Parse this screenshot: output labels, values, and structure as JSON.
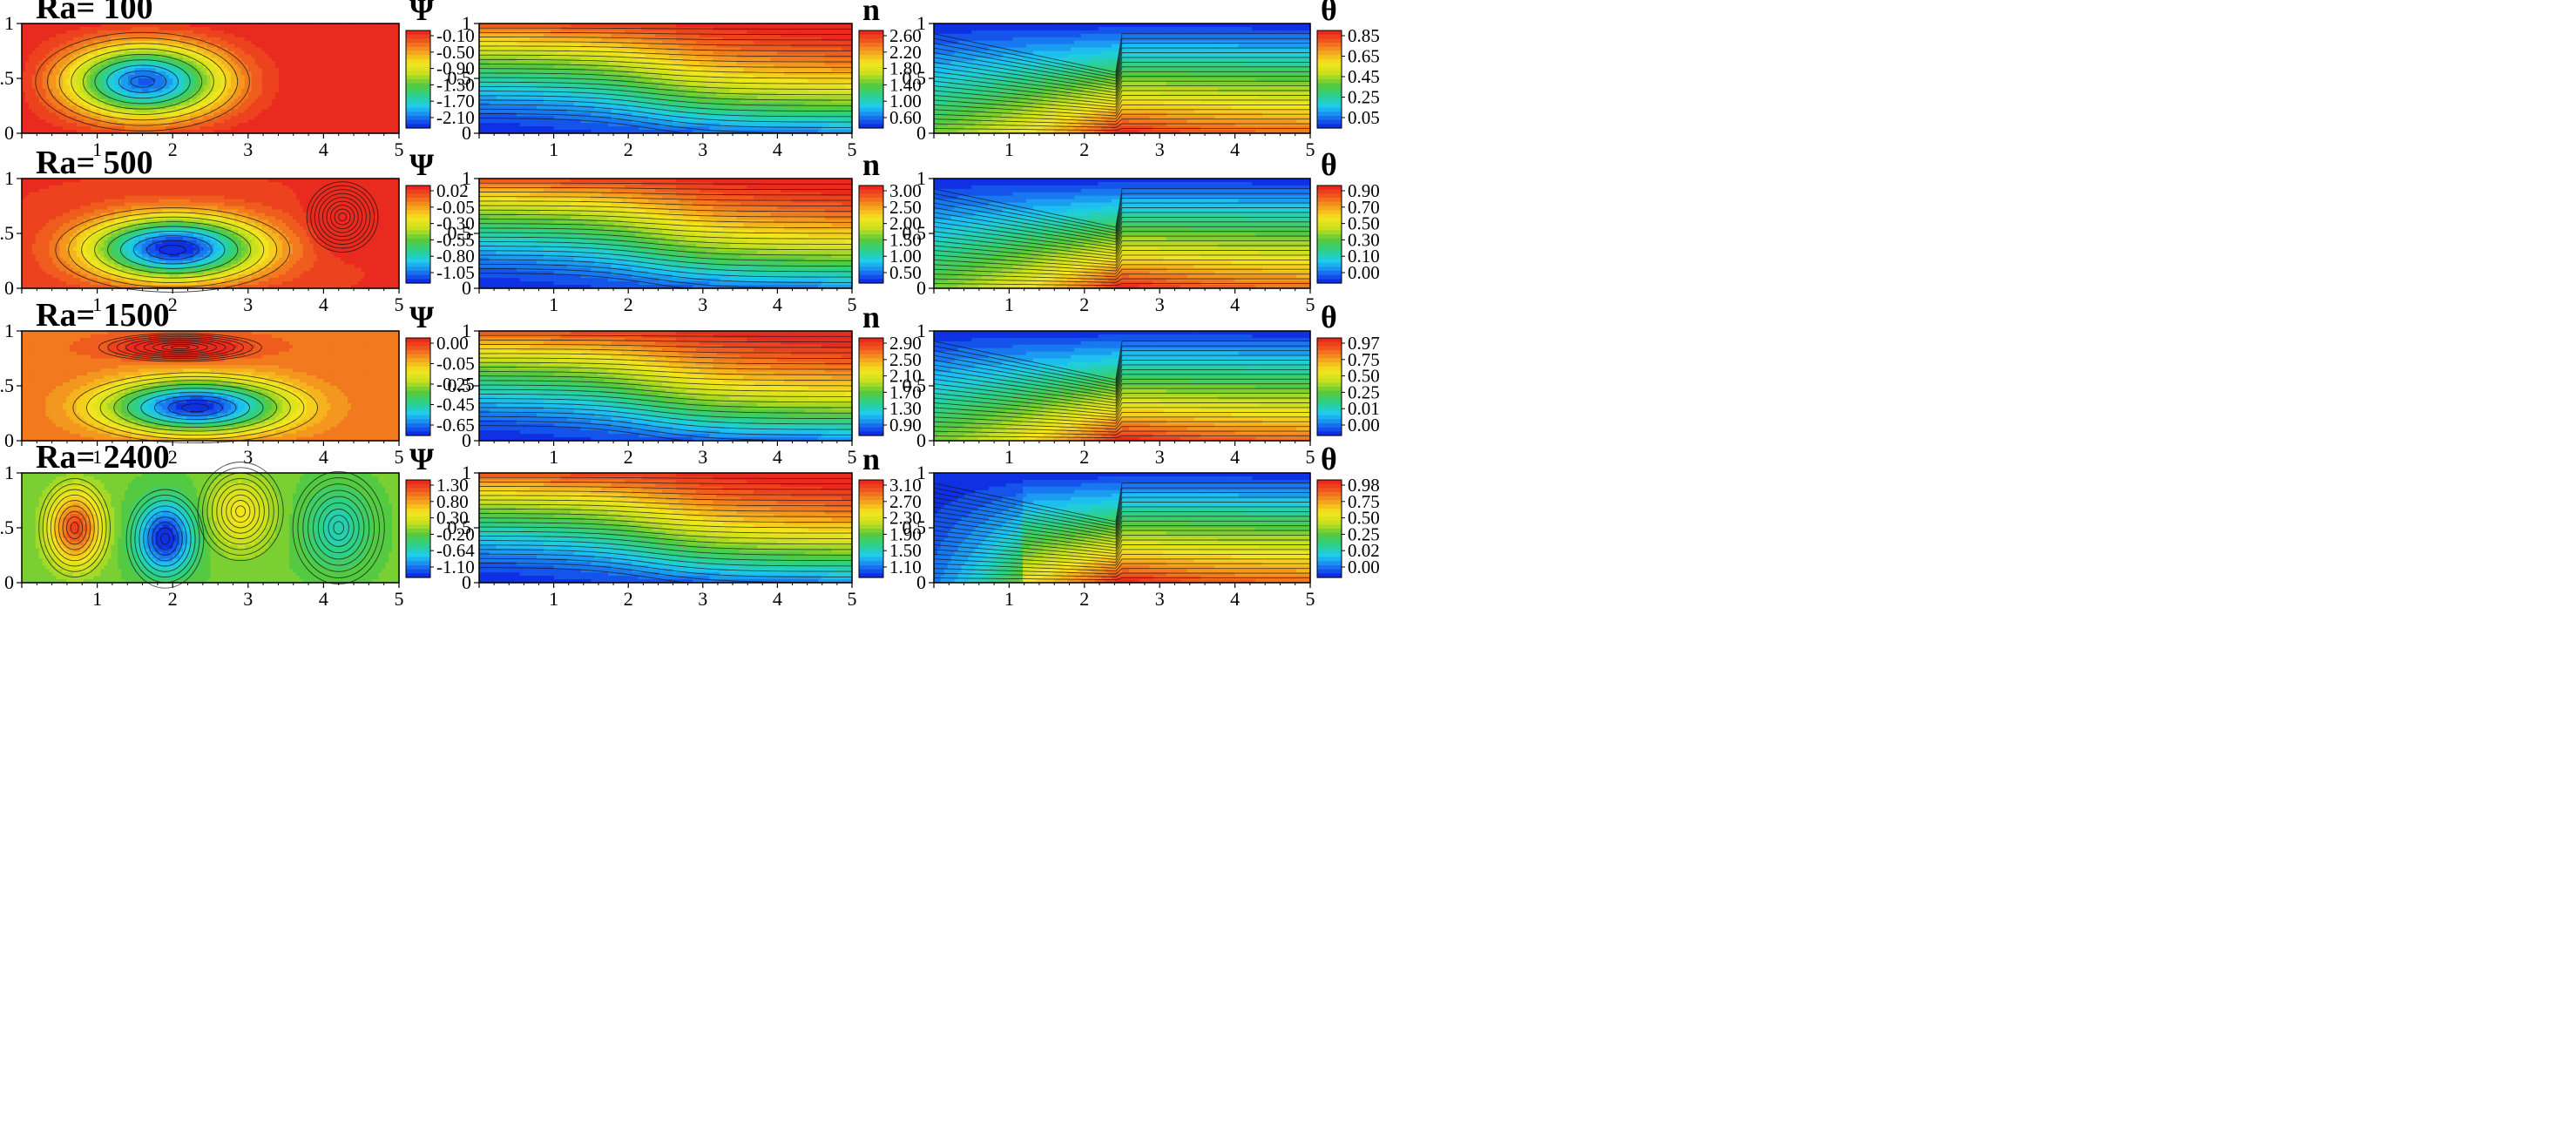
{
  "figure": {
    "description_rows": [
      "Ra= 100",
      "Ra= 500",
      "Ra= 1500",
      "Ra= 2400"
    ]
  },
  "colormap": [
    "#0c1ee0",
    "#1976f0",
    "#1ecdf0",
    "#2bd08a",
    "#59c93a",
    "#c7e01e",
    "#f5e51e",
    "#f5a21e",
    "#ef5a1e",
    "#e81e1e"
  ],
  "chart_data": [
    {
      "type": "heatmap",
      "row": 0,
      "col": 0,
      "title": "Ra= 100",
      "variable": "Ψ",
      "field": "psi_one_cell",
      "xlim": [
        0,
        5
      ],
      "ylim": [
        0,
        1
      ],
      "x_ticks": [
        "1",
        "2",
        "3",
        "4",
        "5"
      ],
      "y_ticks": [
        "0",
        "0.5",
        "1"
      ],
      "colorbar": {
        "labels": [
          "-0.10",
          "-0.50",
          "-0.90",
          "-1.30",
          "-1.70",
          "-2.10"
        ],
        "range": [
          -2.3,
          0.0
        ]
      },
      "cells": [
        {
          "cx": 1.6,
          "cy": 0.47,
          "amp": -2.2,
          "sx": 1.05,
          "sy": 0.35
        }
      ]
    },
    {
      "type": "heatmap",
      "row": 0,
      "col": 1,
      "variable": "n",
      "field": "conc",
      "xlim": [
        0,
        5
      ],
      "ylim": [
        0,
        1
      ],
      "x_ticks": [
        "1",
        "2",
        "3",
        "4",
        "5"
      ],
      "y_ticks": [
        "0",
        "0.5",
        "1"
      ],
      "colorbar": {
        "labels": [
          "2.60",
          "2.20",
          "1.80",
          "1.40",
          "1.00",
          "0.60"
        ],
        "range": [
          0.45,
          2.8
        ]
      }
    },
    {
      "type": "heatmap",
      "row": 0,
      "col": 2,
      "variable": "θ",
      "field": "temp",
      "xlim": [
        0,
        5
      ],
      "ylim": [
        0,
        1
      ],
      "x_ticks": [
        "1",
        "2",
        "3",
        "4",
        "5"
      ],
      "y_ticks": [
        "0",
        "0.5",
        "1"
      ],
      "colorbar": {
        "labels": [
          "0.85",
          "0.65",
          "0.45",
          "0.25",
          "0.05"
        ],
        "range": [
          0.0,
          1.0
        ]
      }
    },
    {
      "type": "heatmap",
      "row": 1,
      "col": 0,
      "title": "Ra= 500",
      "variable": "Ψ",
      "field": "psi_two_cell",
      "xlim": [
        0,
        5
      ],
      "ylim": [
        0,
        1
      ],
      "x_ticks": [
        "1",
        "2",
        "3",
        "4",
        "5"
      ],
      "y_ticks": [
        "0",
        "0.5",
        "1"
      ],
      "colorbar": {
        "labels": [
          "0.02",
          "-0.05",
          "-0.30",
          "-0.55",
          "-0.80",
          "-1.05"
        ],
        "range": [
          -1.1,
          0.05
        ]
      },
      "cells": [
        {
          "cx": 2.0,
          "cy": 0.35,
          "amp": -1.15,
          "sx": 1.15,
          "sy": 0.3
        },
        {
          "cx": 4.25,
          "cy": 0.65,
          "amp": 0.25,
          "sx": 0.35,
          "sy": 0.25
        }
      ]
    },
    {
      "type": "heatmap",
      "row": 1,
      "col": 1,
      "variable": "n",
      "field": "conc",
      "xlim": [
        0,
        5
      ],
      "ylim": [
        0,
        1
      ],
      "x_ticks": [
        "1",
        "2",
        "3",
        "4",
        "5"
      ],
      "y_ticks": [
        "0",
        "0.5",
        "1"
      ],
      "colorbar": {
        "labels": [
          "3.00",
          "2.50",
          "2.00",
          "1.50",
          "1.00",
          "0.50"
        ],
        "range": [
          0.3,
          3.3
        ]
      }
    },
    {
      "type": "heatmap",
      "row": 1,
      "col": 2,
      "variable": "θ",
      "field": "temp",
      "xlim": [
        0,
        5
      ],
      "ylim": [
        0,
        1
      ],
      "x_ticks": [
        "1",
        "2",
        "3",
        "4",
        "5"
      ],
      "y_ticks": [
        "0",
        "0.5",
        "1"
      ],
      "colorbar": {
        "labels": [
          "0.90",
          "0.70",
          "0.50",
          "0.30",
          "0.10",
          "0.00"
        ],
        "range": [
          0.0,
          1.0
        ]
      }
    },
    {
      "type": "heatmap",
      "row": 2,
      "col": 0,
      "title": "Ra= 1500",
      "variable": "Ψ",
      "field": "psi_layered",
      "xlim": [
        0,
        5
      ],
      "ylim": [
        0,
        1
      ],
      "x_ticks": [
        "1",
        "2",
        "3",
        "4",
        "5"
      ],
      "y_ticks": [
        "0",
        "0.5",
        "1"
      ],
      "colorbar": {
        "labels": [
          "0.00",
          "-0.05",
          "-0.25",
          "-0.45",
          "-0.65"
        ],
        "range": [
          -0.72,
          0.12
        ]
      },
      "cells": [
        {
          "cx": 2.3,
          "cy": 0.3,
          "amp": -0.75,
          "sx": 1.2,
          "sy": 0.25
        },
        {
          "cx": 2.1,
          "cy": 0.85,
          "amp": 0.25,
          "sx": 0.8,
          "sy": 0.1
        }
      ]
    },
    {
      "type": "heatmap",
      "row": 2,
      "col": 1,
      "variable": "n",
      "field": "conc",
      "xlim": [
        0,
        5
      ],
      "ylim": [
        0,
        1
      ],
      "x_ticks": [
        "1",
        "2",
        "3",
        "4",
        "5"
      ],
      "y_ticks": [
        "0",
        "0.5",
        "1"
      ],
      "colorbar": {
        "labels": [
          "2.90",
          "2.50",
          "2.10",
          "1.70",
          "1.30",
          "0.90"
        ],
        "range": [
          0.8,
          3.1
        ]
      }
    },
    {
      "type": "heatmap",
      "row": 2,
      "col": 2,
      "variable": "θ",
      "field": "temp",
      "xlim": [
        0,
        5
      ],
      "ylim": [
        0,
        1
      ],
      "x_ticks": [
        "1",
        "2",
        "3",
        "4",
        "5"
      ],
      "y_ticks": [
        "0",
        "0.5",
        "1"
      ],
      "colorbar": {
        "labels": [
          "0.97",
          "0.75",
          "0.50",
          "0.25",
          "0.01",
          "0.00"
        ],
        "range": [
          0.0,
          1.0
        ]
      }
    },
    {
      "type": "heatmap",
      "row": 3,
      "col": 0,
      "title": "Ra= 2400",
      "variable": "Ψ",
      "field": "psi_multi_cell",
      "xlim": [
        0,
        5
      ],
      "ylim": [
        0,
        1
      ],
      "x_ticks": [
        "1",
        "2",
        "3",
        "4",
        "5"
      ],
      "y_ticks": [
        "0",
        "0.5",
        "1"
      ],
      "colorbar": {
        "labels": [
          "1.30",
          "0.80",
          "0.30",
          "-0.20",
          "-0.64",
          "-1.10"
        ],
        "range": [
          -1.25,
          1.45
        ]
      },
      "cells": [
        {
          "cx": 0.7,
          "cy": 0.5,
          "amp": 1.5,
          "sx": 0.35,
          "sy": 0.35
        },
        {
          "cx": 1.9,
          "cy": 0.4,
          "amp": -1.3,
          "sx": 0.38,
          "sy": 0.35
        },
        {
          "cx": 2.9,
          "cy": 0.65,
          "amp": 0.55,
          "sx": 0.42,
          "sy": 0.35
        },
        {
          "cx": 4.2,
          "cy": 0.5,
          "amp": -0.55,
          "sx": 0.45,
          "sy": 0.4
        }
      ]
    },
    {
      "type": "heatmap",
      "row": 3,
      "col": 1,
      "variable": "n",
      "field": "conc",
      "xlim": [
        0,
        5
      ],
      "ylim": [
        0,
        1
      ],
      "x_ticks": [
        "1",
        "2",
        "3",
        "4",
        "5"
      ],
      "y_ticks": [
        "0",
        "0.5",
        "1"
      ],
      "colorbar": {
        "labels": [
          "3.10",
          "2.70",
          "2.30",
          "1.90",
          "1.50",
          "1.10"
        ],
        "range": [
          1.0,
          3.3
        ]
      }
    },
    {
      "type": "heatmap",
      "row": 3,
      "col": 2,
      "variable": "θ",
      "field": "temp",
      "xlim": [
        0,
        5
      ],
      "ylim": [
        0,
        1
      ],
      "x_ticks": [
        "1",
        "2",
        "3",
        "4",
        "5"
      ],
      "y_ticks": [
        "0",
        "0.5",
        "1"
      ],
      "colorbar": {
        "labels": [
          "0.98",
          "0.75",
          "0.50",
          "0.25",
          "0.02",
          "0.00"
        ],
        "range": [
          0.0,
          1.0
        ]
      }
    }
  ]
}
